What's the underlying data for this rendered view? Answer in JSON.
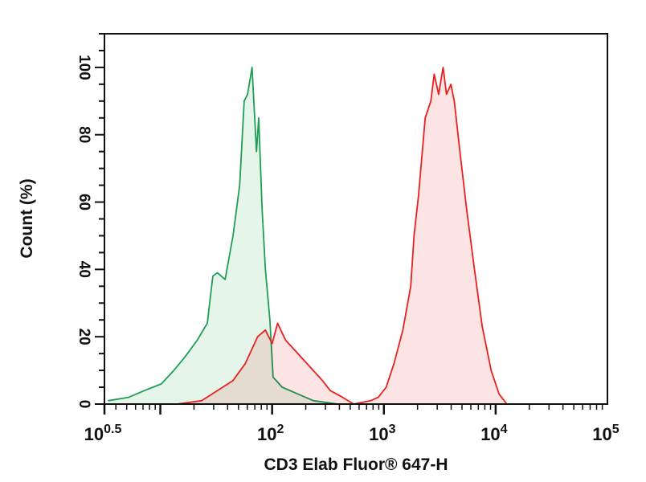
{
  "chart_data": {
    "type": "area",
    "title": "",
    "xlabel": "CD3 Elab Fluor® 647-H",
    "ylabel": "Count (%)",
    "x_scale": "log",
    "xlim": [
      3.162,
      100000
    ],
    "ylim": [
      0,
      110
    ],
    "grid": false,
    "x_ticks": [
      {
        "value": 3.162,
        "base": "10",
        "exp": "0.5"
      },
      {
        "value": 100,
        "base": "10",
        "exp": "2"
      },
      {
        "value": 1000,
        "base": "10",
        "exp": "3"
      },
      {
        "value": 10000,
        "base": "10",
        "exp": "4"
      },
      {
        "value": 100000,
        "base": "10",
        "exp": "5"
      }
    ],
    "y_ticks": [
      "0",
      "20",
      "40",
      "60",
      "80",
      "100"
    ],
    "series": [
      {
        "color": "#1f9e55",
        "fill": "#e6f5ea",
        "x": [
          3.4,
          5.2,
          7.2,
          10.2,
          13.2,
          16.6,
          21.4,
          26.3,
          29.5,
          32.4,
          38,
          44.7,
          51.3,
          56.2,
          60.3,
          66.1,
          72.4,
          75.9,
          81.3,
          87.1,
          95.5,
          102,
          123,
          170,
          234,
          389
        ],
        "y": [
          1,
          2,
          4,
          6,
          10,
          14,
          19,
          24,
          38,
          39,
          37,
          50,
          65,
          90,
          92,
          100,
          75,
          85,
          58,
          40,
          25,
          8,
          5,
          3,
          1,
          0
        ]
      },
      {
        "color": "#e8201e",
        "fill": "#fde4e4",
        "x": [
          14.1,
          23.4,
          32.4,
          44.7,
          57.5,
          74.1,
          87.1,
          100,
          112,
          132,
          170,
          219,
          282,
          331,
          427,
          537,
          759,
          891,
          1047,
          1230,
          1479,
          1738,
          1862,
          2042,
          2344,
          2630,
          2818,
          3090,
          3388,
          3631,
          3981,
          4266,
          4786,
          5495,
          6457,
          7586,
          9120,
          10715,
          12589
        ],
        "y": [
          0,
          1,
          4,
          7,
          12,
          20,
          22,
          18,
          24,
          19,
          15,
          11,
          7,
          4,
          2,
          0,
          1,
          2,
          5,
          12,
          22,
          35,
          50,
          62,
          85,
          90,
          98,
          92,
          100,
          92,
          95,
          90,
          75,
          58,
          40,
          23,
          10,
          3,
          0
        ]
      }
    ]
  }
}
